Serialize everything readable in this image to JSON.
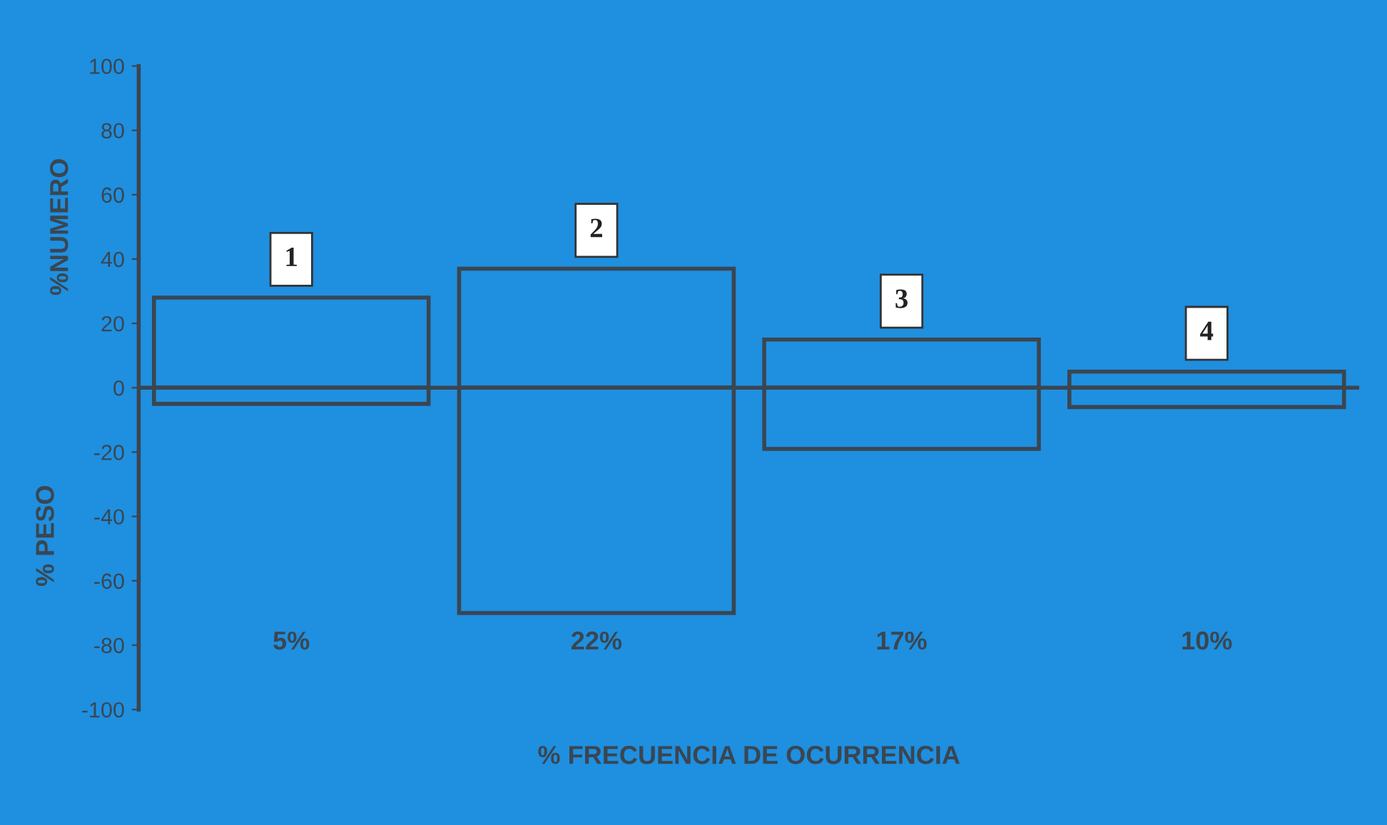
{
  "chart_data": {
    "type": "bar",
    "stacked": true,
    "categories": [
      "1",
      "2",
      "3",
      "4"
    ],
    "series": [
      {
        "color": "#3a4650",
        "values": [
          28,
          37,
          15,
          5
        ]
      },
      {
        "color": "#3a4650",
        "values": [
          -5,
          -70,
          -19,
          -6
        ]
      }
    ],
    "ylim": [
      -100,
      100
    ],
    "yticks": [
      -100,
      -80,
      -60,
      -40,
      -20,
      0,
      20,
      40,
      60,
      80,
      100
    ],
    "ylabel": "%NUMERO",
    "xlabel": "% FRECUENCIA DE OCURRENCIA",
    "ref_lines": [
      {
        "axis": "y",
        "value": 0,
        "color": "#3a4650"
      }
    ],
    "annotations": [
      "% PESO",
      "5%",
      "22%",
      "17%",
      "10%"
    ],
    "grid": false,
    "legend": false
  }
}
